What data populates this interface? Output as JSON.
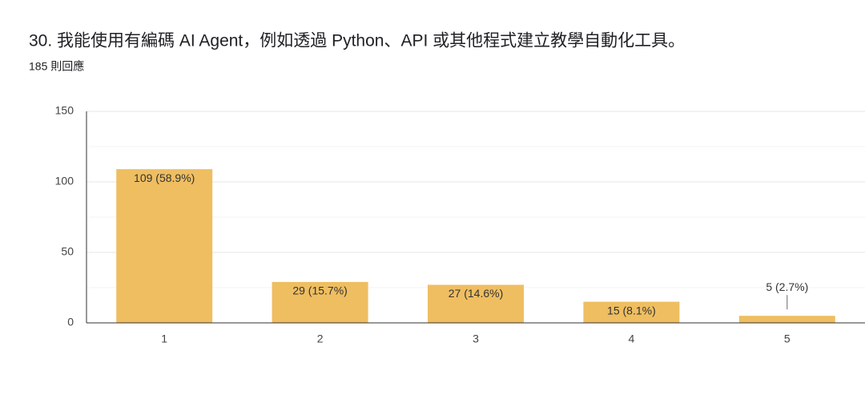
{
  "chart_data": {
    "type": "bar",
    "title": "30. 我能使用有編碼 AI Agent，例如透過 Python、API 或其他程式建立教學自動化工具。",
    "subtitle": "185 則回應",
    "categories": [
      "1",
      "2",
      "3",
      "4",
      "5"
    ],
    "values": [
      109,
      29,
      27,
      15,
      5
    ],
    "value_labels": [
      "109 (58.9%)",
      "29 (15.7%)",
      "27 (14.6%)",
      "15 (8.1%)",
      "5 (2.7%)"
    ],
    "color": "#efbe61",
    "ylim": [
      0,
      150
    ],
    "yticks": [
      0,
      50,
      100,
      150
    ],
    "minor_yticks": [
      25,
      75,
      125
    ],
    "grid": true
  }
}
